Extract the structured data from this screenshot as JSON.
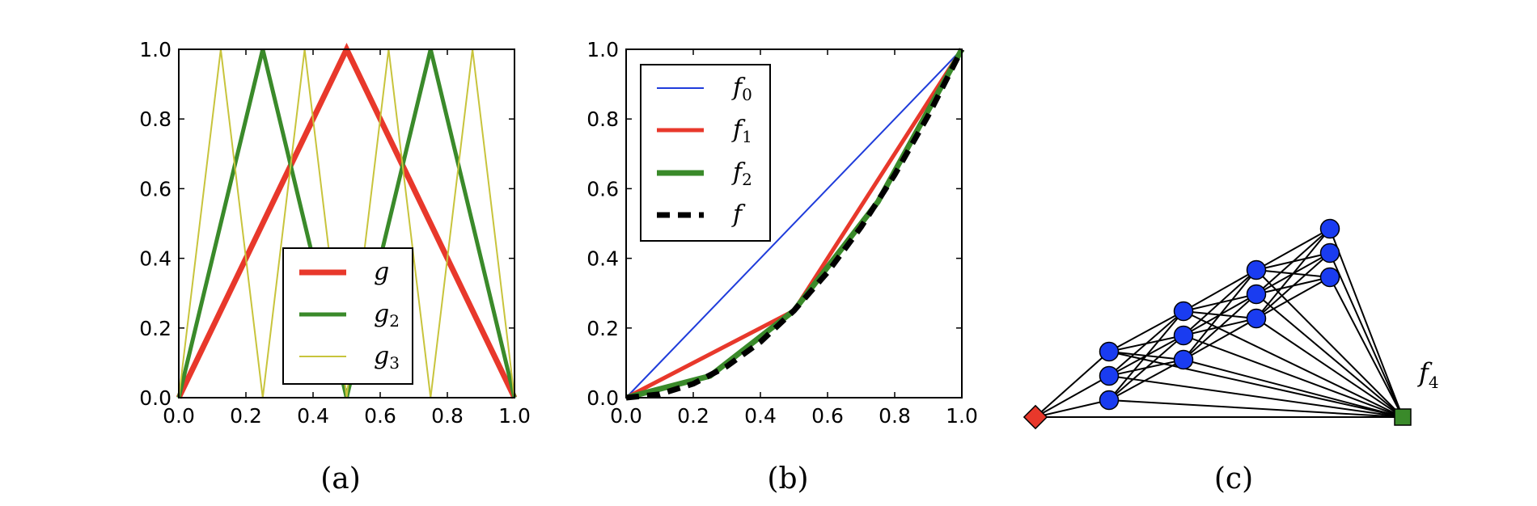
{
  "chart_data": [
    {
      "type": "line",
      "panel": "a",
      "caption": "(a)",
      "xlim": [
        0,
        1
      ],
      "ylim": [
        0,
        1
      ],
      "xticks": [
        "0.0",
        "0.2",
        "0.4",
        "0.6",
        "0.8",
        "1.0"
      ],
      "yticks": [
        "0.0",
        "0.2",
        "0.4",
        "0.6",
        "0.8",
        "1.0"
      ],
      "legend_placement": "lower-center",
      "series": [
        {
          "name": "g",
          "sub": "",
          "color": "#e8382b",
          "x": [
            0,
            0.5,
            1
          ],
          "y": [
            0,
            1,
            0
          ]
        },
        {
          "name": "g",
          "sub": "2",
          "color": "#3a8a2a",
          "x": [
            0,
            0.25,
            0.5,
            0.75,
            1
          ],
          "y": [
            0,
            1,
            0,
            1,
            0
          ]
        },
        {
          "name": "g",
          "sub": "3",
          "color": "#c8c43c",
          "x": [
            0,
            0.125,
            0.25,
            0.375,
            0.5,
            0.625,
            0.75,
            0.875,
            1
          ],
          "y": [
            0,
            1,
            0,
            1,
            0,
            1,
            0,
            1,
            0
          ]
        }
      ]
    },
    {
      "type": "line",
      "panel": "b",
      "caption": "(b)",
      "xlim": [
        0,
        1
      ],
      "ylim": [
        0,
        1
      ],
      "xticks": [
        "0.0",
        "0.2",
        "0.4",
        "0.6",
        "0.8",
        "1.0"
      ],
      "yticks": [
        "0.0",
        "0.2",
        "0.4",
        "0.6",
        "0.8",
        "1.0"
      ],
      "legend_placement": "upper-left",
      "series": [
        {
          "name": "f",
          "sub": "0",
          "color": "#1f3cdb",
          "x": [
            0,
            1
          ],
          "y": [
            0,
            1
          ]
        },
        {
          "name": "f",
          "sub": "1",
          "color": "#e8382b",
          "x": [
            0,
            0.5,
            1
          ],
          "y": [
            0,
            0.25,
            1
          ]
        },
        {
          "name": "f",
          "sub": "2",
          "color": "#3a8a2a",
          "x": [
            0,
            0.25,
            0.5,
            0.75,
            1
          ],
          "y": [
            0,
            0.0625,
            0.25,
            0.5625,
            1
          ]
        },
        {
          "name": "f",
          "sub": "",
          "color": "#000000",
          "x": [
            0,
            0.1,
            0.2,
            0.3,
            0.4,
            0.5,
            0.6,
            0.7,
            0.8,
            0.9,
            1
          ],
          "y": [
            0,
            0.01,
            0.04,
            0.09,
            0.16,
            0.25,
            0.36,
            0.49,
            0.64,
            0.81,
            1
          ]
        }
      ]
    }
  ],
  "network": {
    "caption": "(c)",
    "output_label": "f",
    "output_sub": "4",
    "input_color": "#e8382b",
    "hidden_color": "#1a3cf0",
    "output_color": "#3a8a2a",
    "layers": [
      3,
      3,
      3,
      3
    ]
  }
}
